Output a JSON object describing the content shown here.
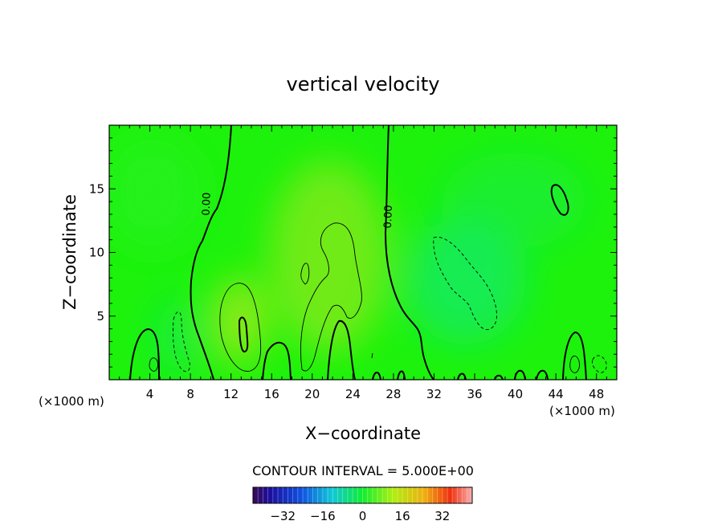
{
  "chart_data": {
    "type": "heatmap",
    "title": "vertical velocity",
    "xlabel": "X−coordinate",
    "ylabel": "Z−coordinate",
    "x_unit_left": "(×1000 m)",
    "x_unit_right": "(×1000 m)",
    "xlim": [
      0,
      50
    ],
    "ylim": [
      0,
      20
    ],
    "x_ticks": [
      4,
      8,
      12,
      16,
      20,
      24,
      28,
      32,
      36,
      40,
      44,
      48
    ],
    "y_ticks": [
      5,
      10,
      15
    ],
    "contour_labels": [
      {
        "text": "0.00",
        "x": 9.9,
        "z": 13.8
      },
      {
        "text": "0.00",
        "x": 27.8,
        "z": 12.8
      }
    ],
    "contour_interval_text": "CONTOUR INTERVAL = 5.000E+00",
    "colorbar": {
      "range": [
        -44,
        44
      ],
      "ticks": [
        -32,
        -16,
        0,
        16,
        32
      ],
      "tick_labels": [
        "−32",
        "−16",
        "0",
        "16",
        "32"
      ]
    },
    "colors": {
      "field_base": "#1cf20c",
      "positive_tint": "#8ce81a",
      "negative_tint": "#12e85a"
    }
  }
}
